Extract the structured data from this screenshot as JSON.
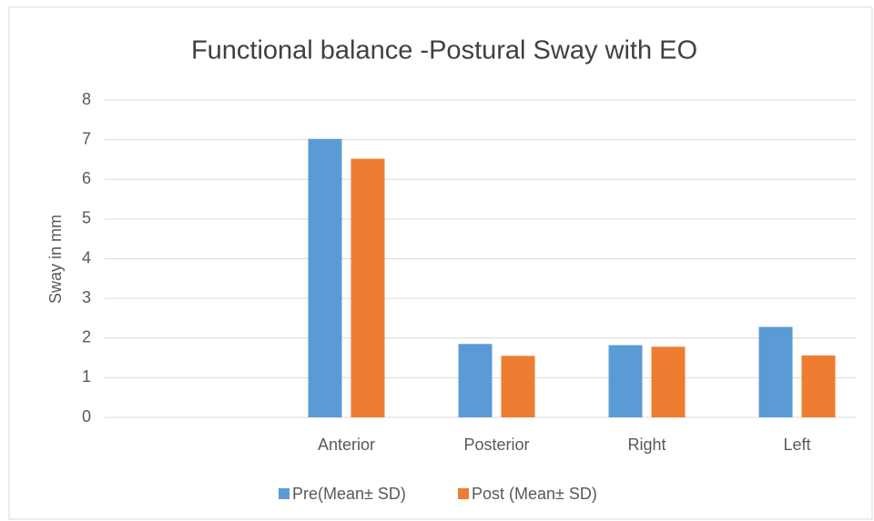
{
  "chart_data": {
    "type": "bar",
    "title": "Functional balance -Postural Sway with EO",
    "y_label": "Sway in mm",
    "categories": [
      null,
      "Anterior",
      "Posterior",
      "Right",
      "Left"
    ],
    "series": [
      {
        "name": "Pre(Mean± SD)",
        "color": "#5b9bd5",
        "values": [
          null,
          7.02,
          1.85,
          1.82,
          2.28
        ]
      },
      {
        "name": "Post (Mean± SD)",
        "color": "#ed7d31",
        "values": [
          null,
          6.52,
          1.55,
          1.78,
          1.56
        ]
      }
    ],
    "ylim": [
      0,
      8
    ],
    "yticks": [
      0,
      1,
      2,
      3,
      4,
      5,
      6,
      7,
      8
    ],
    "grid": true,
    "legend": "bottom"
  }
}
